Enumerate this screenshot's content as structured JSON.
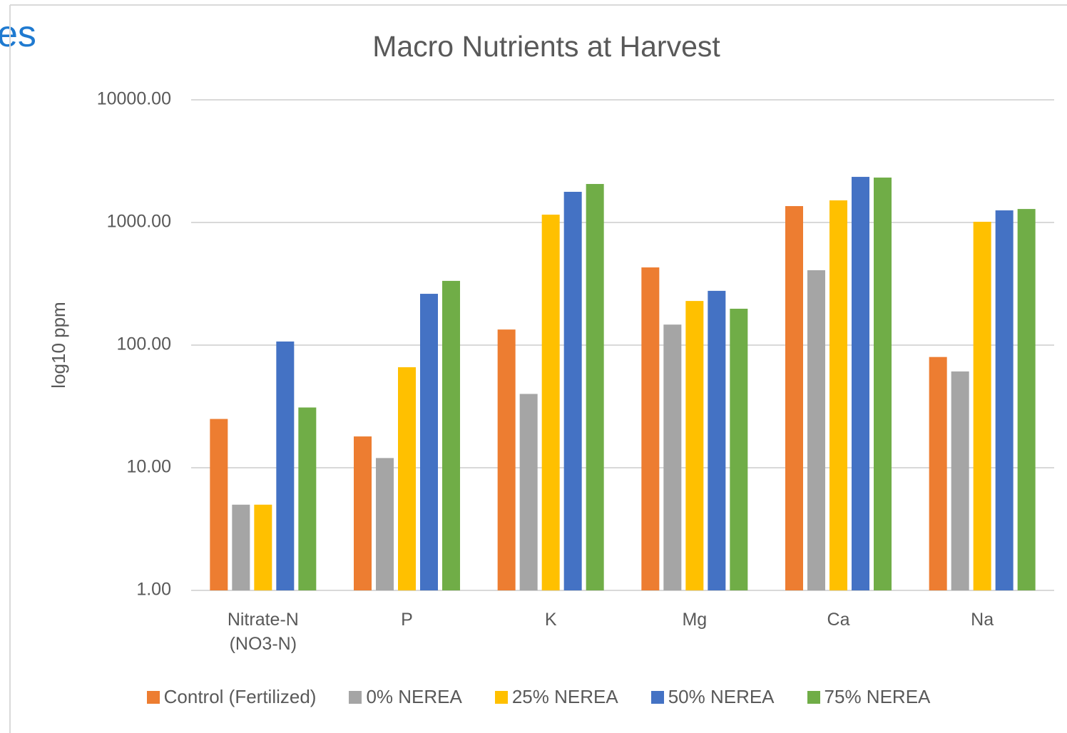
{
  "slide_text": "es",
  "chart_data": {
    "type": "bar",
    "title": "Macro Nutrients at Harvest",
    "y_label": "log10 ppm",
    "log_scale": true,
    "grid": true,
    "legend": "bottom",
    "categories": [
      "Nitrate-N (NO3-N)",
      "P",
      "K",
      "Mg",
      "Ca",
      "Na"
    ],
    "series": [
      {
        "name": "Control (Fertilized)",
        "color": "#ed7d31",
        "values": [
          25,
          18,
          134,
          430,
          1360,
          80
        ]
      },
      {
        "name": "0% NEREA",
        "color": "#a5a5a5",
        "values": [
          5,
          12,
          40,
          147,
          408,
          61
        ]
      },
      {
        "name": "25% NEREA",
        "color": "#ffc000",
        "values": [
          5,
          66,
          1158,
          229,
          1514,
          1013
        ]
      },
      {
        "name": "50% NEREA",
        "color": "#4472c4",
        "values": [
          107,
          262,
          1778,
          277,
          2354,
          1255
        ]
      },
      {
        "name": "75% NEREA",
        "color": "#70ad47",
        "values": [
          31,
          334,
          2060,
          198,
          2323,
          1288
        ]
      }
    ],
    "ylim": [
      1,
      10000
    ],
    "yticks": [
      {
        "value": 1,
        "label": "1.00"
      },
      {
        "value": 10,
        "label": "10.00"
      },
      {
        "value": 100,
        "label": "100.00"
      },
      {
        "value": 1000,
        "label": "1000.00"
      },
      {
        "value": 10000,
        "label": "10000.00"
      }
    ]
  }
}
